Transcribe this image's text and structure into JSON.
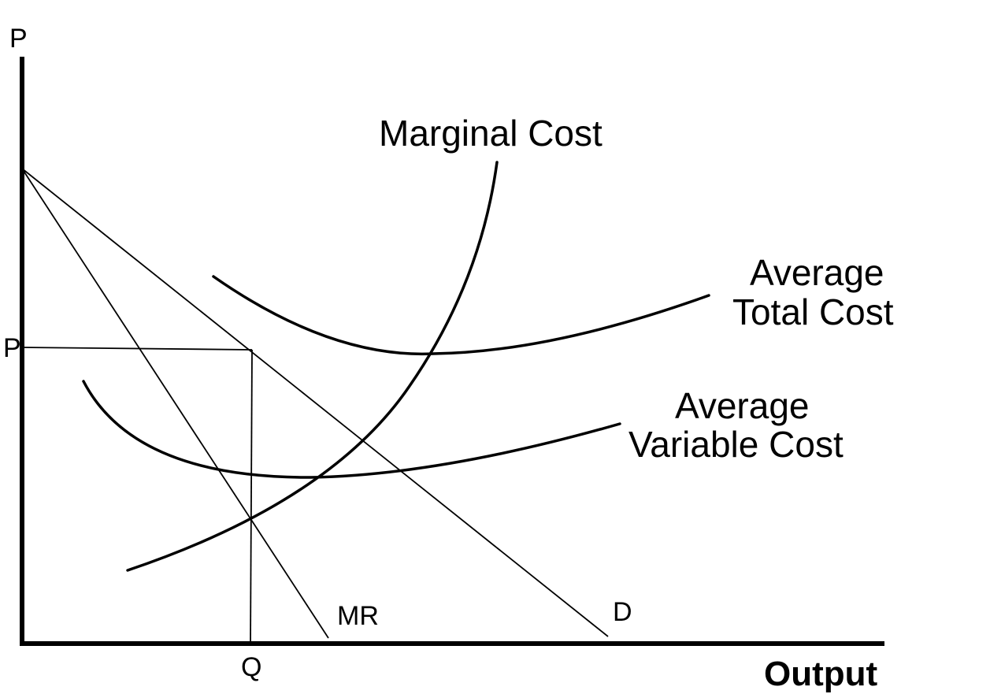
{
  "axes": {
    "y_label": "P",
    "x_label": "Output"
  },
  "markers": {
    "price": "P",
    "quantity": "Q"
  },
  "curves": {
    "marginal_cost": "Marginal Cost",
    "atc_line1": "Average",
    "atc_line2": "Total Cost",
    "avc_line1": "Average",
    "avc_line2": "Variable Cost",
    "marginal_revenue": "MR",
    "demand": "D"
  }
}
